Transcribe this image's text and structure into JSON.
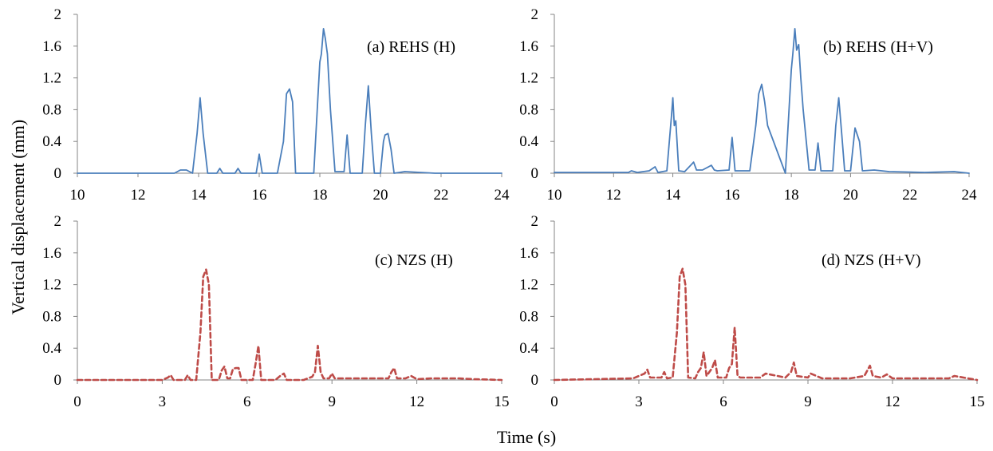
{
  "figure": {
    "ylabel": "Vertical displacement  (mm)",
    "xlabel": "Time (s)"
  },
  "colors": {
    "blue_series": "#4a7ebb",
    "red_series": "#be4b48",
    "axis": "#868686"
  },
  "chart_data": [
    {
      "type": "line",
      "label": "(a) REHS (H)",
      "line_style": "solid",
      "xlim": [
        10,
        24
      ],
      "ylim": [
        0,
        2
      ],
      "xticks": [
        10,
        12,
        14,
        16,
        18,
        20,
        22,
        24
      ],
      "yticks": [
        0,
        0.4,
        0.8,
        1.2,
        1.6,
        2
      ],
      "ytick_labels": [
        "0",
        "0.4",
        "0.8",
        "1.2",
        "1.6",
        "2"
      ],
      "series": [
        {
          "x": [
            10,
            12.4,
            13.2,
            13.4,
            13.6,
            13.8,
            13.95,
            14.05,
            14.15,
            14.3,
            14.6,
            14.7,
            14.8,
            15.2,
            15.3,
            15.4,
            15.9,
            16.0,
            16.1,
            16.6,
            16.8,
            16.9,
            17.0,
            17.1,
            17.2,
            17.8,
            18.0,
            18.05,
            18.12,
            18.18,
            18.25,
            18.35,
            18.5,
            18.7,
            18.8,
            18.9,
            19.0,
            19.4,
            19.5,
            19.6,
            19.7,
            19.8,
            20.0,
            20.1,
            20.15,
            20.25,
            20.35,
            20.45,
            20.8,
            21.3,
            21.8,
            24
          ],
          "y": [
            0,
            0,
            0,
            0.04,
            0.04,
            0,
            0.5,
            0.95,
            0.5,
            0,
            0,
            0.06,
            0,
            0,
            0.06,
            0,
            0,
            0.24,
            0,
            0,
            0.4,
            1.0,
            1.06,
            0.9,
            0,
            0,
            1.4,
            1.5,
            1.82,
            1.7,
            1.5,
            0.8,
            0.02,
            0.02,
            0.02,
            0.48,
            0,
            0,
            0.6,
            1.1,
            0.5,
            0,
            0,
            0.4,
            0.48,
            0.5,
            0.3,
            0,
            0.02,
            0.01,
            0,
            0
          ]
        }
      ]
    },
    {
      "type": "line",
      "label": "(b) REHS (H+V)",
      "line_style": "solid",
      "xlim": [
        10,
        24
      ],
      "ylim": [
        0,
        2
      ],
      "xticks": [
        10,
        12,
        14,
        16,
        18,
        20,
        22,
        24
      ],
      "yticks": [
        0,
        0.4,
        0.8,
        1.2,
        1.6,
        2
      ],
      "ytick_labels": [
        "0",
        "0.4",
        "0.8",
        "1.2",
        "1.6",
        "2"
      ],
      "series": [
        {
          "x": [
            10,
            12.5,
            12.6,
            12.8,
            13.2,
            13.4,
            13.5,
            13.8,
            13.95,
            14.0,
            14.05,
            14.1,
            14.2,
            14.4,
            14.6,
            14.7,
            14.8,
            15.0,
            15.3,
            15.4,
            15.5,
            15.9,
            16.0,
            16.1,
            16.6,
            16.8,
            16.9,
            17.0,
            17.1,
            17.2,
            17.8,
            18.0,
            18.05,
            18.12,
            18.18,
            18.25,
            18.32,
            18.4,
            18.6,
            18.8,
            18.9,
            19.0,
            19.4,
            19.5,
            19.6,
            19.7,
            19.8,
            20.0,
            20.15,
            20.3,
            20.4,
            20.8,
            21.3,
            22.5,
            23.5,
            24
          ],
          "y": [
            0.01,
            0.01,
            0.03,
            0.01,
            0.03,
            0.08,
            0.01,
            0.03,
            0.7,
            0.95,
            0.6,
            0.66,
            0.03,
            0.02,
            0.1,
            0.14,
            0.04,
            0.04,
            0.1,
            0.04,
            0.03,
            0.04,
            0.45,
            0.03,
            0.03,
            0.6,
            1.0,
            1.12,
            0.9,
            0.6,
            0,
            1.3,
            1.5,
            1.82,
            1.55,
            1.62,
            1.2,
            0.8,
            0.04,
            0.04,
            0.38,
            0.03,
            0.03,
            0.6,
            0.95,
            0.5,
            0.03,
            0.03,
            0.57,
            0.4,
            0.03,
            0.04,
            0.02,
            0.01,
            0.02,
            0
          ]
        }
      ]
    },
    {
      "type": "line",
      "label": "(c) NZS (H)",
      "line_style": "dashed",
      "xlim": [
        0,
        15
      ],
      "ylim": [
        0,
        2
      ],
      "xticks": [
        0,
        3,
        6,
        9,
        12,
        15
      ],
      "yticks": [
        0,
        0.4,
        0.8,
        1.2,
        1.6,
        2
      ],
      "ytick_labels": [
        "0",
        "0.4",
        "0.8",
        "1.2",
        "1.6",
        "2"
      ],
      "series": [
        {
          "x": [
            0,
            3.0,
            3.2,
            3.3,
            3.4,
            3.8,
            3.9,
            4.0,
            4.2,
            4.35,
            4.45,
            4.55,
            4.65,
            4.75,
            5.0,
            5.1,
            5.2,
            5.3,
            5.4,
            5.5,
            5.6,
            5.7,
            5.8,
            6.2,
            6.3,
            6.4,
            6.5,
            7.0,
            7.2,
            7.3,
            7.4,
            8.0,
            8.3,
            8.4,
            8.5,
            8.6,
            8.7,
            8.9,
            9.0,
            9.1,
            9.5,
            10.0,
            10.5,
            11.0,
            11.1,
            11.2,
            11.3,
            11.6,
            11.8,
            12.0,
            12.5,
            13.0,
            13.5,
            14.0,
            15.0
          ],
          "y": [
            0,
            0,
            0.03,
            0.06,
            0,
            0,
            0.06,
            0,
            0,
            0.6,
            1.3,
            1.39,
            1.2,
            0,
            0,
            0.12,
            0.17,
            0.02,
            0.02,
            0.14,
            0.15,
            0.15,
            0,
            0,
            0.2,
            0.43,
            0,
            0,
            0.06,
            0.08,
            0,
            0,
            0.04,
            0.1,
            0.43,
            0.1,
            0.02,
            0.02,
            0.08,
            0.02,
            0.02,
            0.02,
            0.02,
            0.02,
            0.1,
            0.15,
            0.02,
            0.02,
            0.05,
            0.01,
            0.02,
            0.02,
            0.02,
            0.01,
            0
          ]
        }
      ]
    },
    {
      "type": "line",
      "label": "(d) NZS (H+V)",
      "line_style": "dashed",
      "xlim": [
        0,
        15
      ],
      "ylim": [
        0,
        2
      ],
      "xticks": [
        0,
        3,
        6,
        9,
        12,
        15
      ],
      "yticks": [
        0,
        0.4,
        0.8,
        1.2,
        1.6,
        2
      ],
      "ytick_labels": [
        "0",
        "0.4",
        "0.8",
        "1.2",
        "1.6",
        "2"
      ],
      "series": [
        {
          "x": [
            0,
            2.8,
            3.2,
            3.3,
            3.4,
            3.8,
            3.9,
            4.0,
            4.2,
            4.35,
            4.45,
            4.55,
            4.65,
            4.75,
            5.0,
            5.1,
            5.2,
            5.3,
            5.4,
            5.6,
            5.7,
            5.8,
            6.1,
            6.2,
            6.3,
            6.4,
            6.5,
            6.6,
            7.3,
            7.5,
            8.2,
            8.4,
            8.5,
            8.6,
            9.0,
            9.1,
            9.5,
            10.0,
            10.5,
            11.0,
            11.2,
            11.3,
            11.6,
            11.8,
            12.0,
            12.5,
            13.0,
            14.0,
            14.2,
            15.0
          ],
          "y": [
            0,
            0.02,
            0.08,
            0.13,
            0.03,
            0.03,
            0.1,
            0.02,
            0.03,
            0.6,
            1.3,
            1.4,
            1.2,
            0.03,
            0.02,
            0.1,
            0.15,
            0.35,
            0.05,
            0.15,
            0.25,
            0.03,
            0.03,
            0.15,
            0.2,
            0.66,
            0.05,
            0.03,
            0.03,
            0.08,
            0.03,
            0.1,
            0.22,
            0.05,
            0.03,
            0.08,
            0.02,
            0.02,
            0.02,
            0.05,
            0.18,
            0.05,
            0.03,
            0.07,
            0.02,
            0.02,
            0.02,
            0.02,
            0.05,
            0
          ]
        }
      ]
    }
  ]
}
